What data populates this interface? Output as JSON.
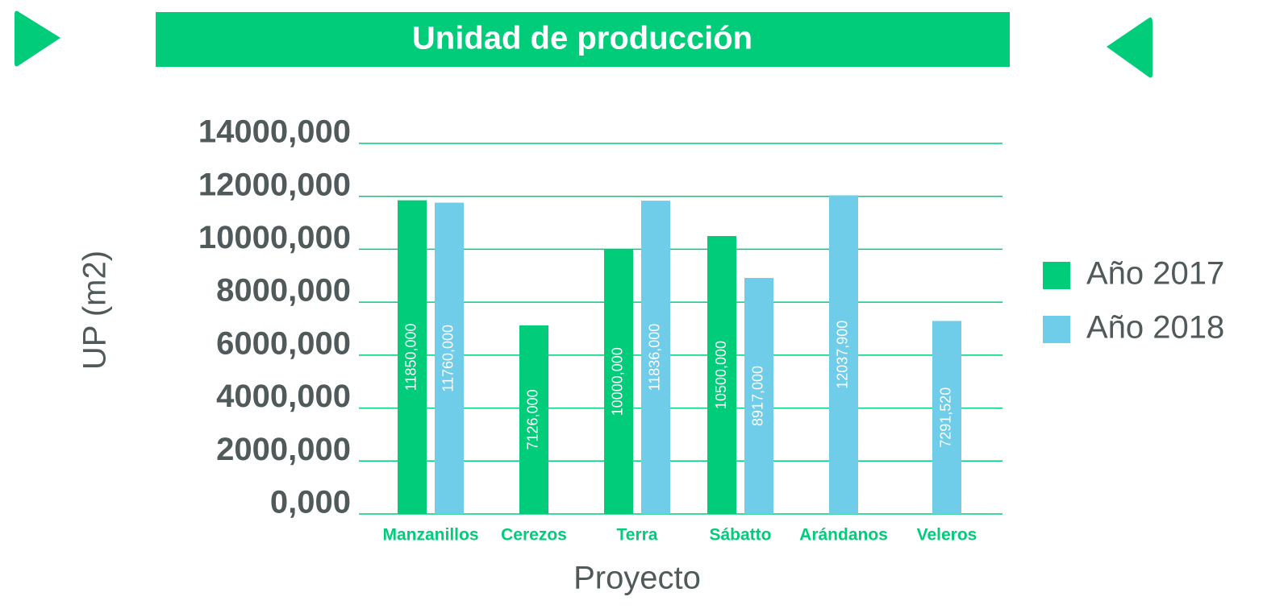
{
  "chart_data": {
    "type": "bar",
    "title": "Unidad de producción",
    "x_label": "Proyecto",
    "y_label": "UP (m2)",
    "categories": [
      "Manzanillos",
      "Cerezos",
      "Terra",
      "Sábatto",
      "Arándanos",
      "Veleros"
    ],
    "series": [
      {
        "name": "Año 2017",
        "color": "#00cc7a",
        "values": [
          11850,
          7126,
          10000,
          10500,
          null,
          null
        ],
        "value_labels": [
          "11850,000",
          "7126,000",
          "10000,000",
          "10500,000",
          null,
          null
        ]
      },
      {
        "name": "Año 2018",
        "color": "#70cdea",
        "values": [
          11760,
          null,
          11836,
          8917,
          12037.9,
          7291.52
        ],
        "value_labels": [
          "11760,000",
          null,
          "11836,000",
          "8917,000",
          "12037,900",
          "7291,520"
        ]
      }
    ],
    "ylim": [
      0,
      14000
    ],
    "yticks": [
      {
        "value": 0,
        "label": "0,000"
      },
      {
        "value": 2000,
        "label": "2000,000"
      },
      {
        "value": 4000,
        "label": "4000,000"
      },
      {
        "value": 6000,
        "label": "6000,000"
      },
      {
        "value": 8000,
        "label": "8000,000"
      },
      {
        "value": 10000,
        "label": "10000,000"
      },
      {
        "value": 12000,
        "label": "12000,000"
      },
      {
        "value": 14000,
        "label": "14000,000"
      }
    ],
    "grid": true,
    "legend": "right"
  }
}
